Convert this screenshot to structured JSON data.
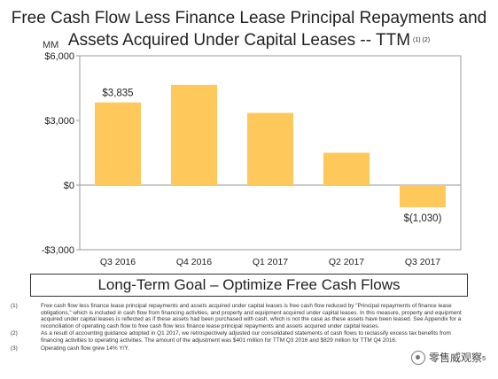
{
  "title": {
    "line1": "Free Cash Flow Less Finance Lease Principal Repayments and",
    "line2": "Assets Acquired Under Capital Leases -- TTM",
    "superscript": "(1) (2)"
  },
  "unit_label": "MM",
  "chart_data": {
    "type": "bar",
    "categories": [
      "Q3 2016",
      "Q4 2016",
      "Q1 2017",
      "Q2 2017",
      "Q3 2017"
    ],
    "values": [
      3835,
      4650,
      3350,
      1500,
      -1030
    ],
    "data_labels": [
      "$3,835",
      "",
      "",
      "",
      "$(1,030)"
    ],
    "ylim": [
      -3000,
      6000
    ],
    "yticks": [
      6000,
      3000,
      0,
      -3000
    ],
    "ytick_labels": [
      "$6,000",
      "$3,000",
      "$0",
      "-$3,000"
    ],
    "bar_color": "#ffc85a",
    "grid": false
  },
  "goal_text": "Long-Term Goal – Optimize Free Cash Flows",
  "footnotes": [
    {
      "num": "(1)",
      "text": "Free cash flow less finance lease principal repayments and assets acquired under capital leases is free cash flow reduced by \"Principal repayments of finance lease obligations,\" which is included in cash flow from financing activities, and property and equipment acquired under capital leases. In this measure, property and equipment acquired under capital leases is reflected as if these assets had been purchased with cash, which is not the case as these assets have been leased. See Appendix for a reconciliation of operating cash flow to free cash flow less finance lease principal repayments and assets acquired under capital leases."
    },
    {
      "num": "(2)",
      "text": "As a result of accounting guidance adopted in Q1 2017, we retrospectively adjusted our consolidated statements of cash flows to reclassify excess tax benefits from financing activities to operating activities. The amount of the adjustment was $401 million for TTM Q3 2016 and $829 million for TTM Q4 2016."
    },
    {
      "num": "(3)",
      "text": "Operating cash flow grew 14% Y/Y."
    }
  ],
  "page_number": "5",
  "watermark": "零售威观察"
}
